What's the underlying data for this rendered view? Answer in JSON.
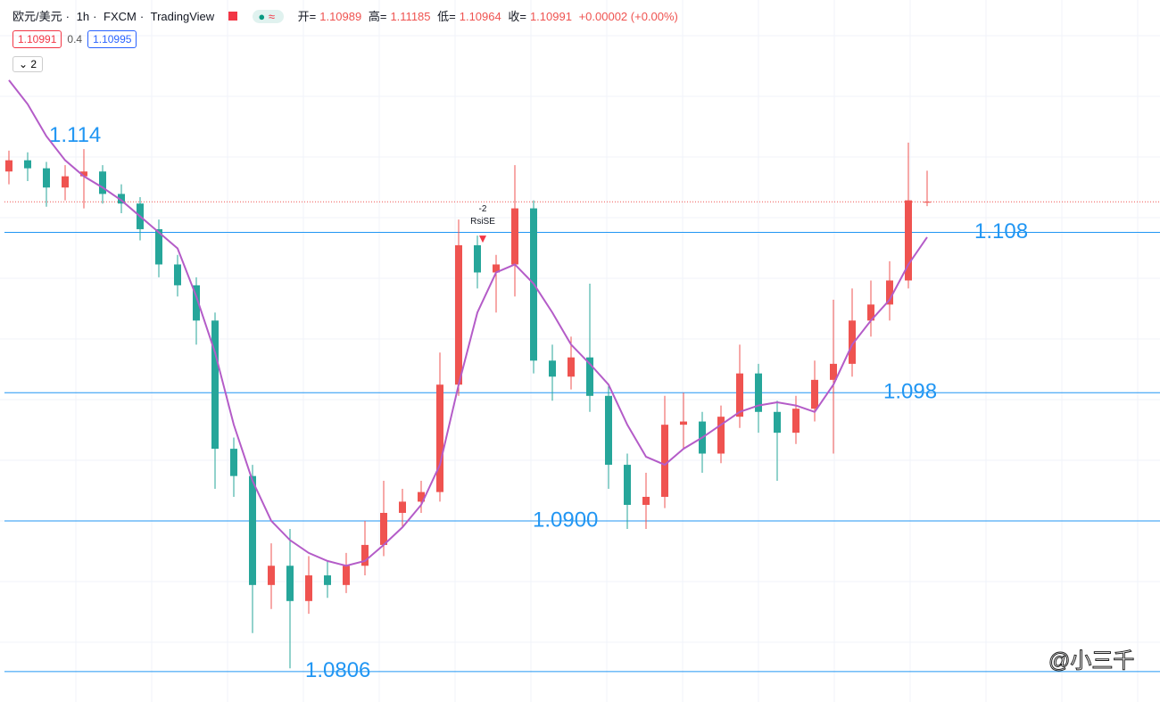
{
  "chart_data": {
    "type": "candlestick",
    "header": {
      "symbol": "欧元/美元",
      "interval": "1h",
      "broker": "FXCM",
      "source": "TradingView",
      "open_key": "开=",
      "high_key": "高=",
      "low_key": "低=",
      "close_key": "收=",
      "change": "+0.00002 (+0.00%)",
      "bid": 1.10991,
      "spread": 0.4,
      "ask": 1.10995,
      "indicators": 2
    },
    "ylim": [
      1.0787,
      1.1225
    ],
    "up_color": "#ef5350",
    "down_color": "#26a69a",
    "ma_color": "#b45cc8",
    "level_color": "#2196f3",
    "last_price_color": "#ef5350",
    "levels": [
      {
        "value": 1.114,
        "label": "1.114",
        "line": false
      },
      {
        "value": 1.108,
        "label": "1.108",
        "line": true
      },
      {
        "value": 1.098,
        "label": "1.098",
        "line": true
      },
      {
        "value": 1.09,
        "label": "1.0900",
        "line": true
      },
      {
        "value": 1.0806,
        "label": "1.0806",
        "line": true
      }
    ],
    "signal": {
      "candle": 25,
      "count": "-2",
      "name": "RsiSE"
    },
    "watermark": "@小三千",
    "candles": [
      {
        "o": 1.1118,
        "h": 1.1131,
        "l": 1.111,
        "c": 1.1125
      },
      {
        "o": 1.1125,
        "h": 1.113,
        "l": 1.1112,
        "c": 1.112
      },
      {
        "o": 1.112,
        "h": 1.1124,
        "l": 1.1096,
        "c": 1.1108
      },
      {
        "o": 1.1108,
        "h": 1.1122,
        "l": 1.11,
        "c": 1.1115
      },
      {
        "o": 1.1115,
        "h": 1.1132,
        "l": 1.1095,
        "c": 1.1118
      },
      {
        "o": 1.1118,
        "h": 1.1122,
        "l": 1.1098,
        "c": 1.1104
      },
      {
        "o": 1.1104,
        "h": 1.111,
        "l": 1.1092,
        "c": 1.1098
      },
      {
        "o": 1.1098,
        "h": 1.1102,
        "l": 1.1075,
        "c": 1.1082
      },
      {
        "o": 1.1082,
        "h": 1.1088,
        "l": 1.1052,
        "c": 1.106
      },
      {
        "o": 1.106,
        "h": 1.1066,
        "l": 1.104,
        "c": 1.1047
      },
      {
        "o": 1.1047,
        "h": 1.1052,
        "l": 1.101,
        "c": 1.1025
      },
      {
        "o": 1.1025,
        "h": 1.103,
        "l": 1.092,
        "c": 1.0945
      },
      {
        "o": 1.0945,
        "h": 1.0952,
        "l": 1.0915,
        "c": 1.0928
      },
      {
        "o": 1.0928,
        "h": 1.0935,
        "l": 1.083,
        "c": 1.086
      },
      {
        "o": 1.086,
        "h": 1.0886,
        "l": 1.0845,
        "c": 1.0872
      },
      {
        "o": 1.0872,
        "h": 1.0895,
        "l": 1.0808,
        "c": 1.085
      },
      {
        "o": 1.085,
        "h": 1.0878,
        "l": 1.0842,
        "c": 1.0866
      },
      {
        "o": 1.0866,
        "h": 1.0875,
        "l": 1.0852,
        "c": 1.086
      },
      {
        "o": 1.086,
        "h": 1.088,
        "l": 1.0855,
        "c": 1.0872
      },
      {
        "o": 1.0872,
        "h": 1.09,
        "l": 1.0866,
        "c": 1.0885
      },
      {
        "o": 1.0885,
        "h": 1.0925,
        "l": 1.0878,
        "c": 1.0905
      },
      {
        "o": 1.0905,
        "h": 1.092,
        "l": 1.0896,
        "c": 1.0912
      },
      {
        "o": 1.0912,
        "h": 1.0925,
        "l": 1.0905,
        "c": 1.0918
      },
      {
        "o": 1.0918,
        "h": 1.1005,
        "l": 1.0912,
        "c": 1.0985
      },
      {
        "o": 1.0985,
        "h": 1.1088,
        "l": 1.0978,
        "c": 1.1072
      },
      {
        "o": 1.1072,
        "h": 1.1078,
        "l": 1.1045,
        "c": 1.1055
      },
      {
        "o": 1.1055,
        "h": 1.1066,
        "l": 1.103,
        "c": 1.106
      },
      {
        "o": 1.106,
        "h": 1.1122,
        "l": 1.104,
        "c": 1.1095
      },
      {
        "o": 1.1095,
        "h": 1.11,
        "l": 1.0992,
        "c": 1.1
      },
      {
        "o": 1.1,
        "h": 1.101,
        "l": 1.0975,
        "c": 1.099
      },
      {
        "o": 1.099,
        "h": 1.1015,
        "l": 1.0982,
        "c": 1.1002
      },
      {
        "o": 1.1002,
        "h": 1.1048,
        "l": 1.0968,
        "c": 1.0978
      },
      {
        "o": 1.0978,
        "h": 1.0985,
        "l": 1.092,
        "c": 1.0935
      },
      {
        "o": 1.0935,
        "h": 1.0942,
        "l": 1.0895,
        "c": 1.091
      },
      {
        "o": 1.091,
        "h": 1.093,
        "l": 1.0895,
        "c": 1.0915
      },
      {
        "o": 1.0915,
        "h": 1.0978,
        "l": 1.0908,
        "c": 1.096
      },
      {
        "o": 1.096,
        "h": 1.098,
        "l": 1.0945,
        "c": 1.0962
      },
      {
        "o": 1.0962,
        "h": 1.0968,
        "l": 1.093,
        "c": 1.0942
      },
      {
        "o": 1.0942,
        "h": 1.0972,
        "l": 1.0936,
        "c": 1.0965
      },
      {
        "o": 1.0965,
        "h": 1.101,
        "l": 1.0958,
        "c": 1.0992
      },
      {
        "o": 1.0992,
        "h": 1.0998,
        "l": 1.0955,
        "c": 1.0968
      },
      {
        "o": 1.0968,
        "h": 1.0975,
        "l": 1.0925,
        "c": 1.0955
      },
      {
        "o": 1.0955,
        "h": 1.0978,
        "l": 1.0948,
        "c": 1.097
      },
      {
        "o": 1.097,
        "h": 1.1,
        "l": 1.0962,
        "c": 1.0988
      },
      {
        "o": 1.0988,
        "h": 1.1038,
        "l": 1.0942,
        "c": 1.0998
      },
      {
        "o": 1.0998,
        "h": 1.1045,
        "l": 1.099,
        "c": 1.1025
      },
      {
        "o": 1.1025,
        "h": 1.105,
        "l": 1.1015,
        "c": 1.1035
      },
      {
        "o": 1.1035,
        "h": 1.1062,
        "l": 1.1025,
        "c": 1.105
      },
      {
        "o": 1.105,
        "h": 1.1136,
        "l": 1.1045,
        "c": 1.11
      },
      {
        "o": 1.10989,
        "h": 1.11185,
        "l": 1.10964,
        "c": 1.10991
      }
    ],
    "ma": [
      1.1175,
      1.116,
      1.114,
      1.1125,
      1.1115,
      1.1108,
      1.11,
      1.109,
      1.108,
      1.107,
      1.104,
      1.1005,
      1.096,
      1.0925,
      1.09,
      1.0888,
      1.088,
      1.0875,
      1.0872,
      1.0875,
      1.0885,
      1.0896,
      1.091,
      1.0935,
      1.0985,
      1.103,
      1.1055,
      1.106,
      1.1048,
      1.103,
      1.101,
      1.0998,
      1.0985,
      1.096,
      1.094,
      1.0935,
      1.0945,
      1.0952,
      1.096,
      1.0968,
      1.0972,
      1.0974,
      1.0972,
      1.0968,
      1.0985,
      1.101,
      1.1025,
      1.1038,
      1.106,
      1.1077
    ]
  }
}
